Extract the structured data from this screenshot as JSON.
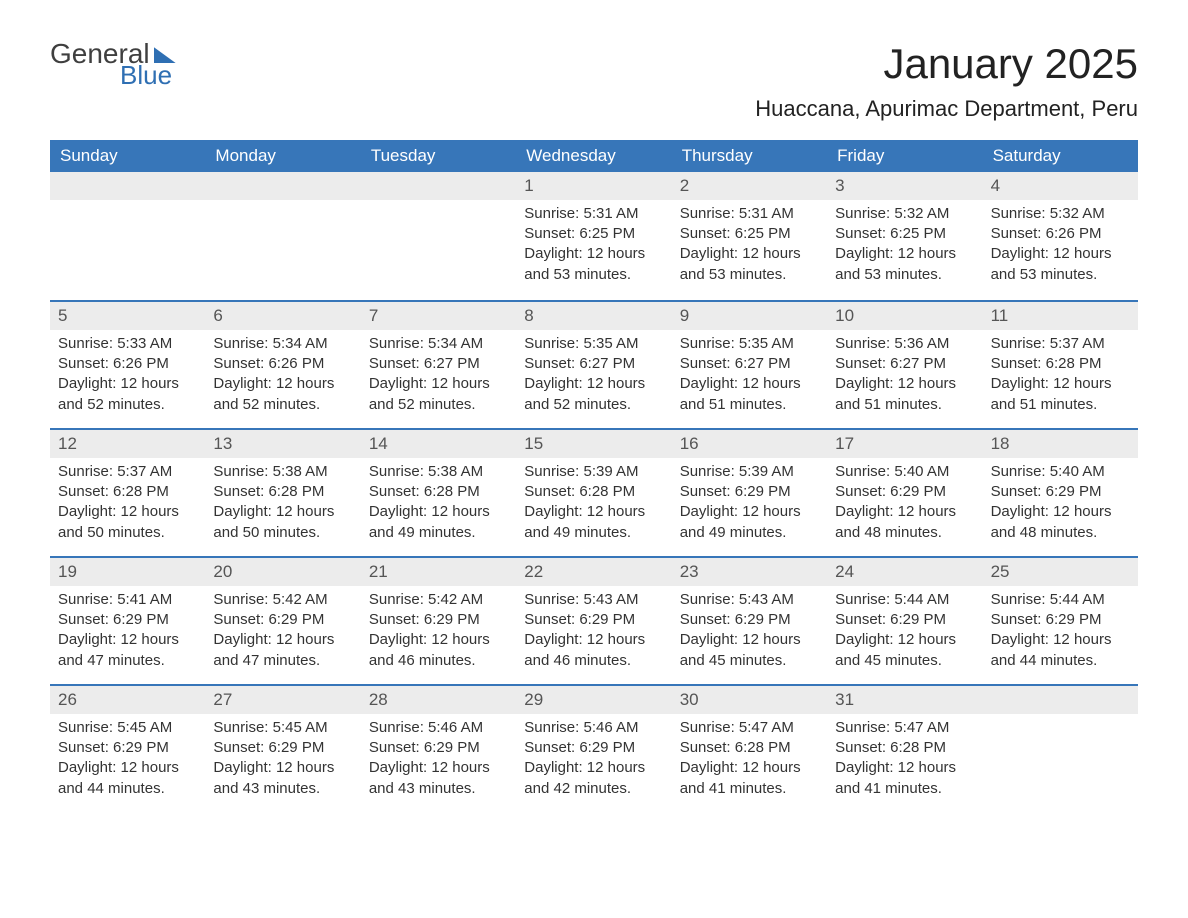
{
  "logo": {
    "general": "General",
    "blue": "Blue"
  },
  "title": "January 2025",
  "location": "Huaccana, Apurimac Department, Peru",
  "colors": {
    "header_bg": "#3776b9",
    "header_text": "#ffffff",
    "daynum_bg": "#ececec",
    "week_border": "#3776b9",
    "text": "#333333",
    "background": "#ffffff",
    "logo_blue": "#2f6fb3"
  },
  "typography": {
    "month_title_fontsize": 42,
    "location_fontsize": 22,
    "dow_fontsize": 17,
    "daynum_fontsize": 17,
    "body_fontsize": 15
  },
  "layout": {
    "columns": 7,
    "rows": 5,
    "first_day_column_index": 3
  },
  "days_of_week": [
    "Sunday",
    "Monday",
    "Tuesday",
    "Wednesday",
    "Thursday",
    "Friday",
    "Saturday"
  ],
  "weeks": [
    [
      null,
      null,
      null,
      {
        "n": "1",
        "sunrise": "Sunrise: 5:31 AM",
        "sunset": "Sunset: 6:25 PM",
        "daylight": "Daylight: 12 hours and 53 minutes."
      },
      {
        "n": "2",
        "sunrise": "Sunrise: 5:31 AM",
        "sunset": "Sunset: 6:25 PM",
        "daylight": "Daylight: 12 hours and 53 minutes."
      },
      {
        "n": "3",
        "sunrise": "Sunrise: 5:32 AM",
        "sunset": "Sunset: 6:25 PM",
        "daylight": "Daylight: 12 hours and 53 minutes."
      },
      {
        "n": "4",
        "sunrise": "Sunrise: 5:32 AM",
        "sunset": "Sunset: 6:26 PM",
        "daylight": "Daylight: 12 hours and 53 minutes."
      }
    ],
    [
      {
        "n": "5",
        "sunrise": "Sunrise: 5:33 AM",
        "sunset": "Sunset: 6:26 PM",
        "daylight": "Daylight: 12 hours and 52 minutes."
      },
      {
        "n": "6",
        "sunrise": "Sunrise: 5:34 AM",
        "sunset": "Sunset: 6:26 PM",
        "daylight": "Daylight: 12 hours and 52 minutes."
      },
      {
        "n": "7",
        "sunrise": "Sunrise: 5:34 AM",
        "sunset": "Sunset: 6:27 PM",
        "daylight": "Daylight: 12 hours and 52 minutes."
      },
      {
        "n": "8",
        "sunrise": "Sunrise: 5:35 AM",
        "sunset": "Sunset: 6:27 PM",
        "daylight": "Daylight: 12 hours and 52 minutes."
      },
      {
        "n": "9",
        "sunrise": "Sunrise: 5:35 AM",
        "sunset": "Sunset: 6:27 PM",
        "daylight": "Daylight: 12 hours and 51 minutes."
      },
      {
        "n": "10",
        "sunrise": "Sunrise: 5:36 AM",
        "sunset": "Sunset: 6:27 PM",
        "daylight": "Daylight: 12 hours and 51 minutes."
      },
      {
        "n": "11",
        "sunrise": "Sunrise: 5:37 AM",
        "sunset": "Sunset: 6:28 PM",
        "daylight": "Daylight: 12 hours and 51 minutes."
      }
    ],
    [
      {
        "n": "12",
        "sunrise": "Sunrise: 5:37 AM",
        "sunset": "Sunset: 6:28 PM",
        "daylight": "Daylight: 12 hours and 50 minutes."
      },
      {
        "n": "13",
        "sunrise": "Sunrise: 5:38 AM",
        "sunset": "Sunset: 6:28 PM",
        "daylight": "Daylight: 12 hours and 50 minutes."
      },
      {
        "n": "14",
        "sunrise": "Sunrise: 5:38 AM",
        "sunset": "Sunset: 6:28 PM",
        "daylight": "Daylight: 12 hours and 49 minutes."
      },
      {
        "n": "15",
        "sunrise": "Sunrise: 5:39 AM",
        "sunset": "Sunset: 6:28 PM",
        "daylight": "Daylight: 12 hours and 49 minutes."
      },
      {
        "n": "16",
        "sunrise": "Sunrise: 5:39 AM",
        "sunset": "Sunset: 6:29 PM",
        "daylight": "Daylight: 12 hours and 49 minutes."
      },
      {
        "n": "17",
        "sunrise": "Sunrise: 5:40 AM",
        "sunset": "Sunset: 6:29 PM",
        "daylight": "Daylight: 12 hours and 48 minutes."
      },
      {
        "n": "18",
        "sunrise": "Sunrise: 5:40 AM",
        "sunset": "Sunset: 6:29 PM",
        "daylight": "Daylight: 12 hours and 48 minutes."
      }
    ],
    [
      {
        "n": "19",
        "sunrise": "Sunrise: 5:41 AM",
        "sunset": "Sunset: 6:29 PM",
        "daylight": "Daylight: 12 hours and 47 minutes."
      },
      {
        "n": "20",
        "sunrise": "Sunrise: 5:42 AM",
        "sunset": "Sunset: 6:29 PM",
        "daylight": "Daylight: 12 hours and 47 minutes."
      },
      {
        "n": "21",
        "sunrise": "Sunrise: 5:42 AM",
        "sunset": "Sunset: 6:29 PM",
        "daylight": "Daylight: 12 hours and 46 minutes."
      },
      {
        "n": "22",
        "sunrise": "Sunrise: 5:43 AM",
        "sunset": "Sunset: 6:29 PM",
        "daylight": "Daylight: 12 hours and 46 minutes."
      },
      {
        "n": "23",
        "sunrise": "Sunrise: 5:43 AM",
        "sunset": "Sunset: 6:29 PM",
        "daylight": "Daylight: 12 hours and 45 minutes."
      },
      {
        "n": "24",
        "sunrise": "Sunrise: 5:44 AM",
        "sunset": "Sunset: 6:29 PM",
        "daylight": "Daylight: 12 hours and 45 minutes."
      },
      {
        "n": "25",
        "sunrise": "Sunrise: 5:44 AM",
        "sunset": "Sunset: 6:29 PM",
        "daylight": "Daylight: 12 hours and 44 minutes."
      }
    ],
    [
      {
        "n": "26",
        "sunrise": "Sunrise: 5:45 AM",
        "sunset": "Sunset: 6:29 PM",
        "daylight": "Daylight: 12 hours and 44 minutes."
      },
      {
        "n": "27",
        "sunrise": "Sunrise: 5:45 AM",
        "sunset": "Sunset: 6:29 PM",
        "daylight": "Daylight: 12 hours and 43 minutes."
      },
      {
        "n": "28",
        "sunrise": "Sunrise: 5:46 AM",
        "sunset": "Sunset: 6:29 PM",
        "daylight": "Daylight: 12 hours and 43 minutes."
      },
      {
        "n": "29",
        "sunrise": "Sunrise: 5:46 AM",
        "sunset": "Sunset: 6:29 PM",
        "daylight": "Daylight: 12 hours and 42 minutes."
      },
      {
        "n": "30",
        "sunrise": "Sunrise: 5:47 AM",
        "sunset": "Sunset: 6:28 PM",
        "daylight": "Daylight: 12 hours and 41 minutes."
      },
      {
        "n": "31",
        "sunrise": "Sunrise: 5:47 AM",
        "sunset": "Sunset: 6:28 PM",
        "daylight": "Daylight: 12 hours and 41 minutes."
      },
      null
    ]
  ]
}
